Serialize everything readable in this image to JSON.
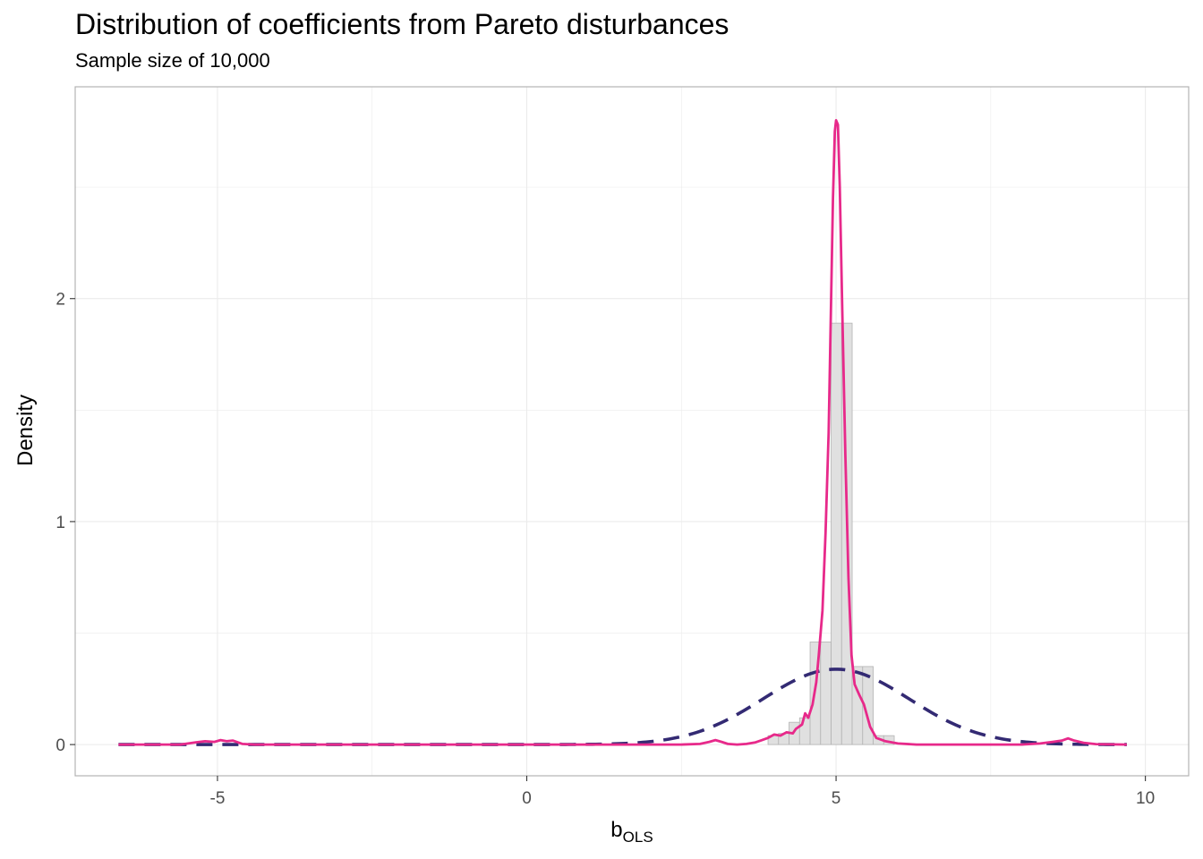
{
  "chart_data": {
    "type": "area",
    "title": "Distribution of coefficients from Pareto disturbances",
    "subtitle": "Sample size of 10,000",
    "xlabel": {
      "main": "b",
      "subscript": "OLS"
    },
    "ylabel": "Density",
    "xlim": [
      -7.3,
      10.7
    ],
    "ylim": [
      -0.14,
      2.95
    ],
    "x_ticks": [
      -5,
      0,
      5,
      10
    ],
    "y_ticks": [
      0,
      1,
      2
    ],
    "x_tick_labels": [
      "-5",
      "0",
      "5",
      "10"
    ],
    "y_tick_labels": [
      "0",
      "1",
      "2"
    ],
    "grid": true,
    "colors": {
      "histogram_fill": "#e0e0e0",
      "histogram_stroke": "#b3b3b3",
      "density_line": "#e7298a",
      "normal_line": "#332a73",
      "grid": "#ebebeb",
      "panel_border": "#b3b3b3"
    },
    "histogram": {
      "bins": [
        {
          "x0": -6.8,
          "x1": 3.9,
          "density": 0
        },
        {
          "x0": 3.9,
          "x1": 4.07,
          "density": 0.04
        },
        {
          "x0": 4.07,
          "x1": 4.24,
          "density": 0.05
        },
        {
          "x0": 4.24,
          "x1": 4.41,
          "density": 0.1
        },
        {
          "x0": 4.41,
          "x1": 4.58,
          "density": 0.12
        },
        {
          "x0": 4.58,
          "x1": 4.75,
          "density": 0.46
        },
        {
          "x0": 4.75,
          "x1": 4.92,
          "density": 0.46
        },
        {
          "x0": 4.92,
          "x1": 5.09,
          "density": 1.89
        },
        {
          "x0": 5.09,
          "x1": 5.26,
          "density": 1.89
        },
        {
          "x0": 5.26,
          "x1": 5.43,
          "density": 0.35
        },
        {
          "x0": 5.43,
          "x1": 5.6,
          "density": 0.35
        },
        {
          "x0": 5.6,
          "x1": 5.77,
          "density": 0.04
        },
        {
          "x0": 5.77,
          "x1": 5.94,
          "density": 0.04
        },
        {
          "x0": 5.94,
          "x1": 9.9,
          "density": 0
        }
      ]
    },
    "series": [
      {
        "style": "dashed",
        "mean": 5.0,
        "sd": 1.18,
        "x_range": [
          -6.6,
          9.7
        ]
      },
      {
        "style": "solid",
        "x": [
          -6.6,
          -5.6,
          -5.35,
          -5.2,
          -5.05,
          -4.95,
          -4.85,
          -4.75,
          -4.6,
          -4.4,
          2.5,
          2.8,
          2.95,
          3.05,
          3.15,
          3.25,
          3.4,
          3.55,
          3.7,
          3.8,
          3.9,
          4.0,
          4.1,
          4.2,
          4.3,
          4.35,
          4.45,
          4.5,
          4.55,
          4.62,
          4.68,
          4.72,
          4.78,
          4.83,
          4.88,
          4.92,
          4.95,
          4.98,
          5.0,
          5.03,
          5.06,
          5.1,
          5.15,
          5.2,
          5.25,
          5.3,
          5.38,
          5.45,
          5.55,
          5.65,
          5.8,
          6.0,
          6.3,
          8.0,
          8.3,
          8.5,
          8.65,
          8.75,
          8.85,
          9.0,
          9.2,
          9.7
        ],
        "y": [
          0,
          0,
          0.01,
          0.015,
          0.012,
          0.02,
          0.015,
          0.018,
          0.003,
          0,
          0,
          0.003,
          0.012,
          0.02,
          0.012,
          0.003,
          0,
          0.003,
          0.01,
          0.02,
          0.03,
          0.045,
          0.04,
          0.055,
          0.05,
          0.07,
          0.09,
          0.14,
          0.12,
          0.18,
          0.28,
          0.4,
          0.6,
          0.95,
          1.4,
          2.0,
          2.45,
          2.75,
          2.8,
          2.78,
          2.5,
          1.95,
          1.3,
          0.75,
          0.4,
          0.27,
          0.22,
          0.18,
          0.08,
          0.03,
          0.015,
          0.005,
          0,
          0,
          0.005,
          0.012,
          0.018,
          0.028,
          0.018,
          0.008,
          0.002,
          0
        ]
      }
    ]
  }
}
